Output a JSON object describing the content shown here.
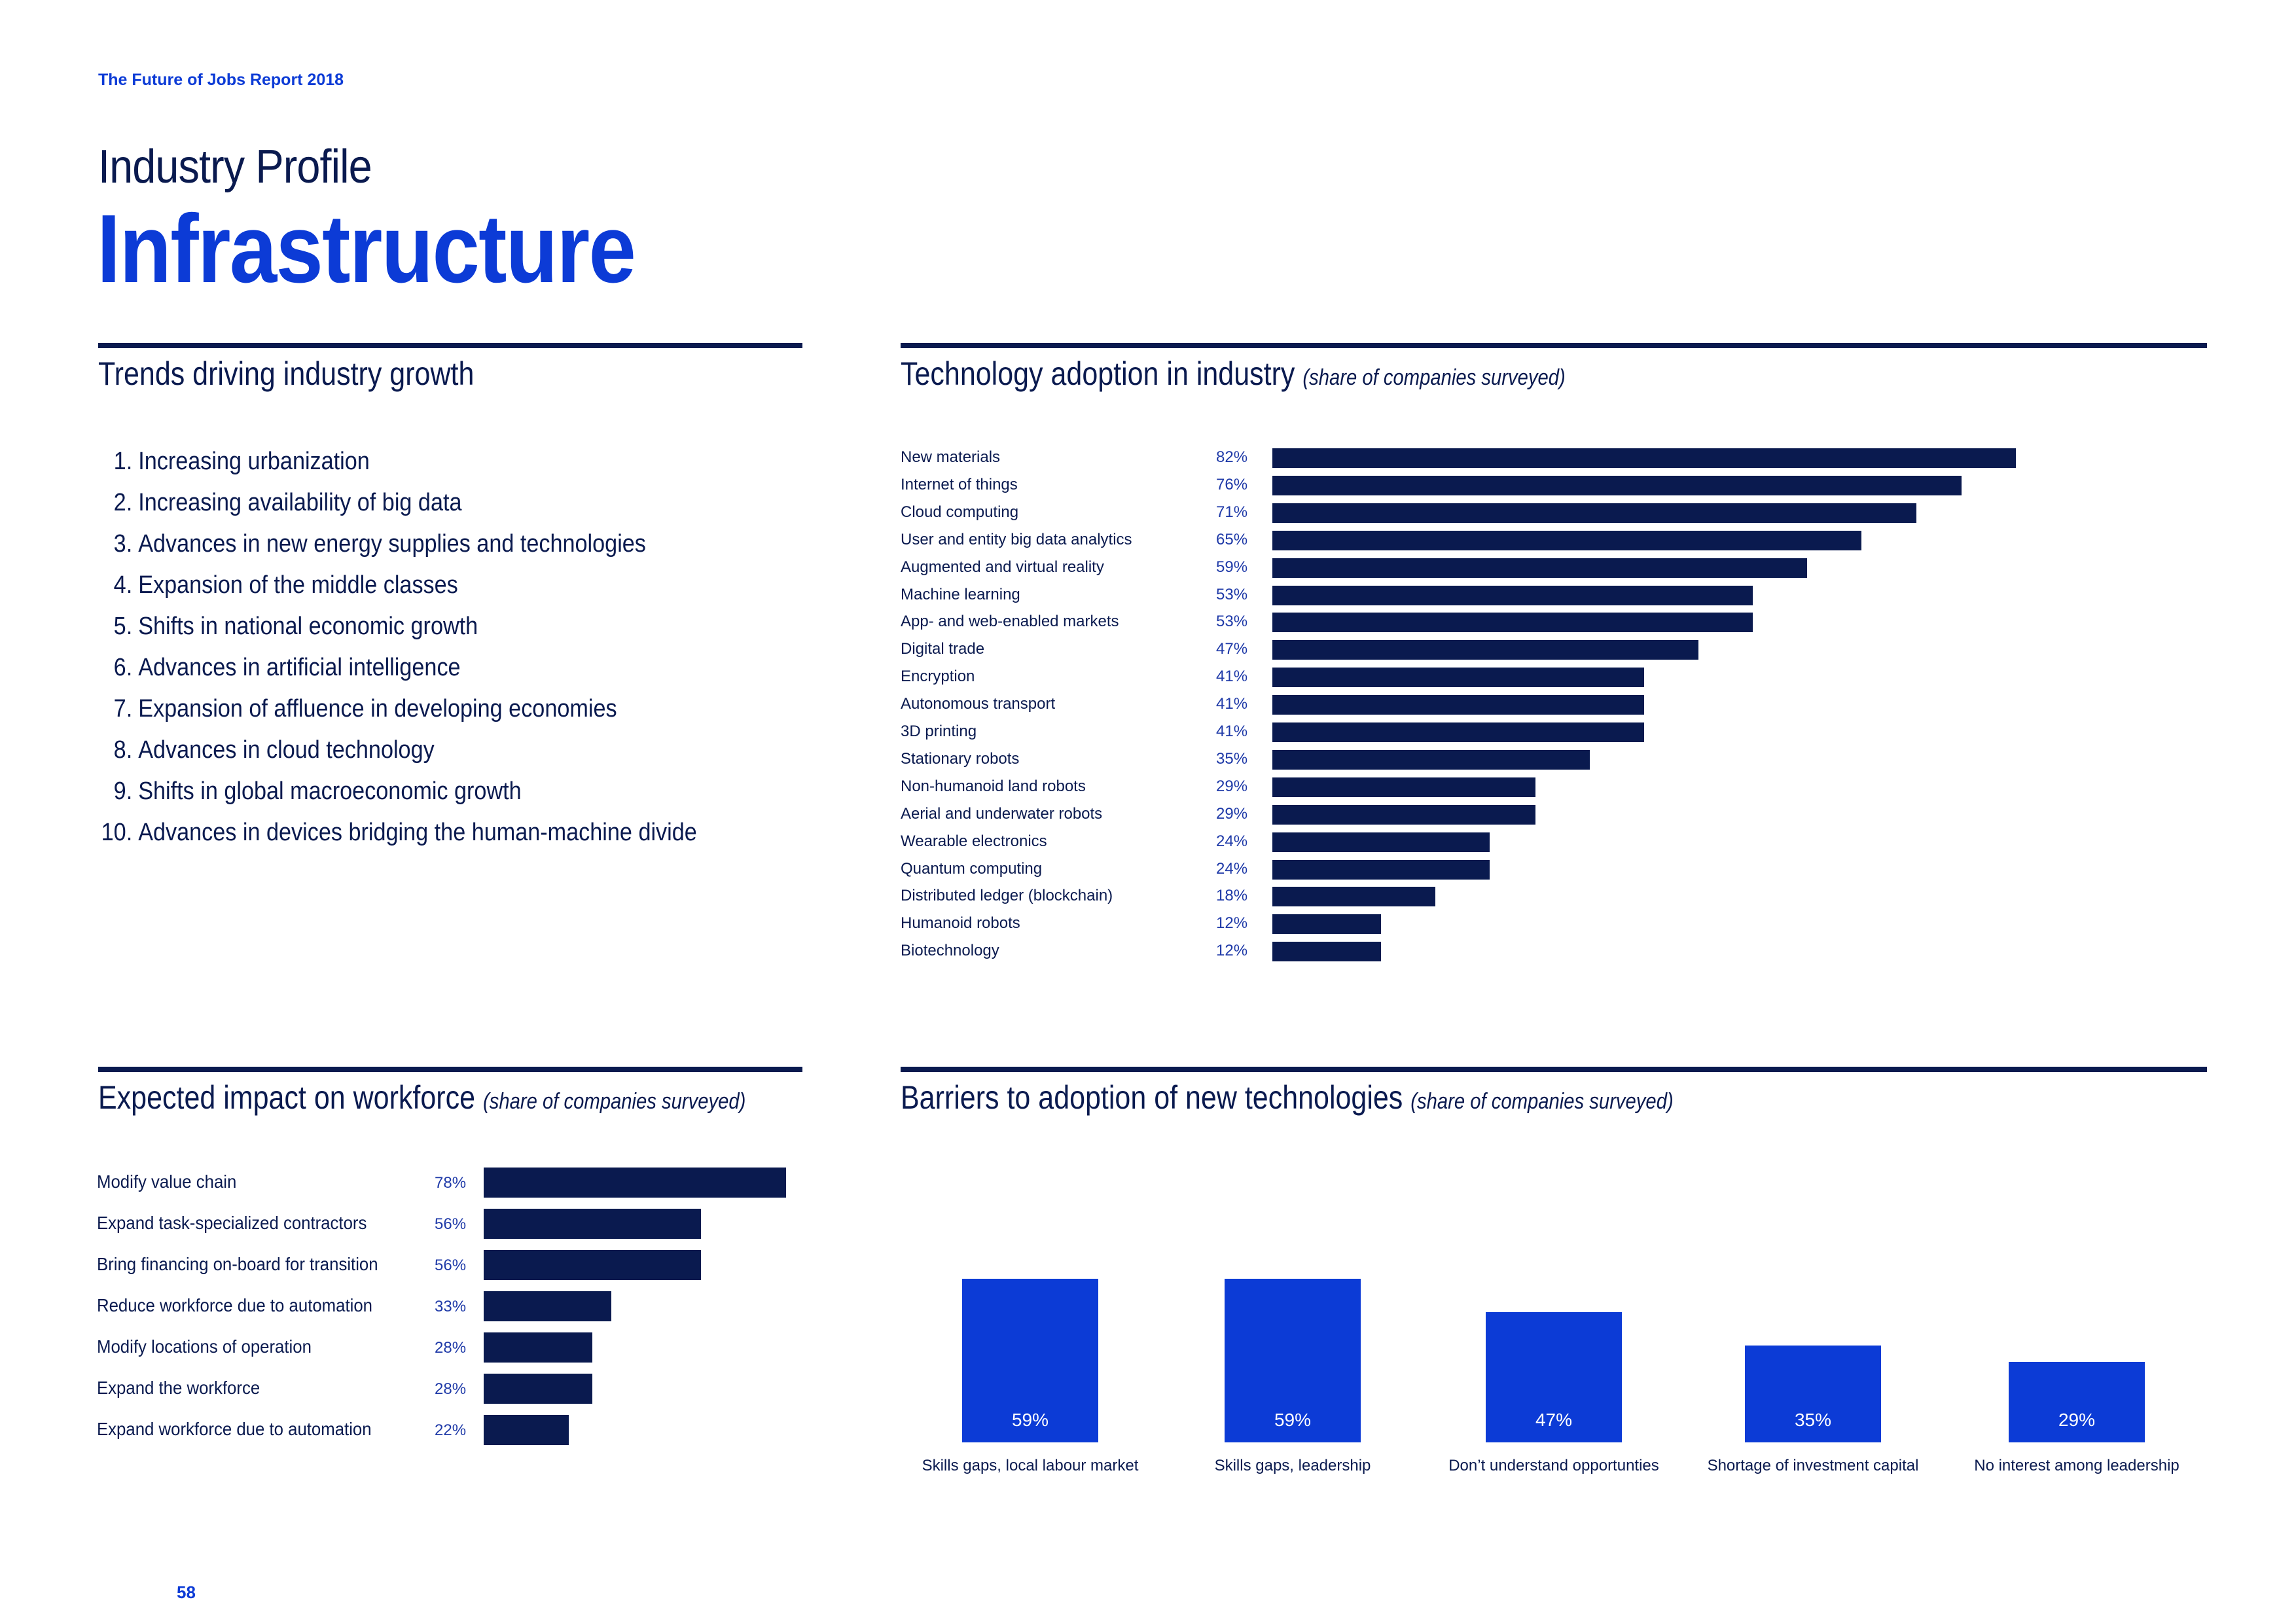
{
  "header": {
    "report_title": "The Future of Jobs Report 2018",
    "profile_label": "Industry Profile",
    "industry": "Infrastructure"
  },
  "trends": {
    "title": "Trends driving industry growth",
    "items": [
      {
        "num": "1.",
        "text": "Increasing urbanization"
      },
      {
        "num": "2.",
        "text": "Increasing availability of big data"
      },
      {
        "num": "3.",
        "text": "Advances in new energy supplies and technologies"
      },
      {
        "num": "4.",
        "text": "Expansion of the middle classes"
      },
      {
        "num": "5.",
        "text": "Shifts in national economic growth"
      },
      {
        "num": "6.",
        "text": "Advances in artificial intelligence"
      },
      {
        "num": "7.",
        "text": "Expansion of affluence in developing economies"
      },
      {
        "num": "8.",
        "text": "Advances in cloud technology"
      },
      {
        "num": "9.",
        "text": "Shifts in global macroeconomic growth"
      },
      {
        "num": "10.",
        "text": "Advances in devices bridging the human-machine divide"
      }
    ]
  },
  "colors": {
    "navy": "#0a1a4f",
    "blue": "#0c3bd6"
  },
  "footer": {
    "page_number": "58"
  },
  "chart_data": [
    {
      "type": "bar",
      "orientation": "horizontal",
      "title": "Technology adoption in industry",
      "subtitle": "(share of companies surveyed)",
      "categories": [
        "New materials",
        "Internet of things",
        "Cloud computing",
        "User and entity big data analytics",
        "Augmented and virtual reality",
        "Machine learning",
        "App- and web-enabled markets",
        "Digital trade",
        "Encryption",
        "Autonomous transport",
        "3D printing",
        "Stationary robots",
        "Non-humanoid land robots",
        "Aerial and underwater robots",
        "Wearable electronics",
        "Quantum computing",
        "Distributed ledger (blockchain)",
        "Humanoid robots",
        "Biotechnology"
      ],
      "values": [
        82,
        76,
        71,
        65,
        59,
        53,
        53,
        47,
        41,
        41,
        41,
        35,
        29,
        29,
        24,
        24,
        18,
        12,
        12
      ],
      "value_labels": [
        "82%",
        "76%",
        "71%",
        "65%",
        "59%",
        "53%",
        "53%",
        "47%",
        "41%",
        "41%",
        "41%",
        "35%",
        "29%",
        "29%",
        "24%",
        "24%",
        "18%",
        "12%",
        "12%"
      ],
      "unit": "%",
      "xlim": [
        0,
        100
      ]
    },
    {
      "type": "bar",
      "orientation": "horizontal",
      "title": "Expected impact on workforce",
      "subtitle": "(share of companies surveyed)",
      "categories": [
        "Modify value chain",
        "Expand task-specialized contractors",
        "Bring financing on-board for transition",
        "Reduce workforce due to automation",
        "Modify locations of operation",
        "Expand the workforce",
        "Expand workforce due to automation"
      ],
      "values": [
        78,
        56,
        56,
        33,
        28,
        28,
        22
      ],
      "value_labels": [
        "78%",
        "56%",
        "56%",
        "33%",
        "28%",
        "28%",
        "22%"
      ],
      "unit": "%",
      "xlim": [
        0,
        78
      ]
    },
    {
      "type": "bar",
      "orientation": "vertical",
      "title": "Barriers to adoption of new technologies",
      "subtitle": "(share of companies surveyed)",
      "categories": [
        "Skills gaps, local labour market",
        "Skills gaps, leadership",
        "Don’t understand opportunties",
        "Shortage of investment capital",
        "No interest among leadership"
      ],
      "values": [
        59,
        59,
        47,
        35,
        29
      ],
      "value_labels": [
        "59%",
        "59%",
        "47%",
        "35%",
        "29%"
      ],
      "unit": "%",
      "ylim": [
        0,
        59
      ]
    }
  ]
}
